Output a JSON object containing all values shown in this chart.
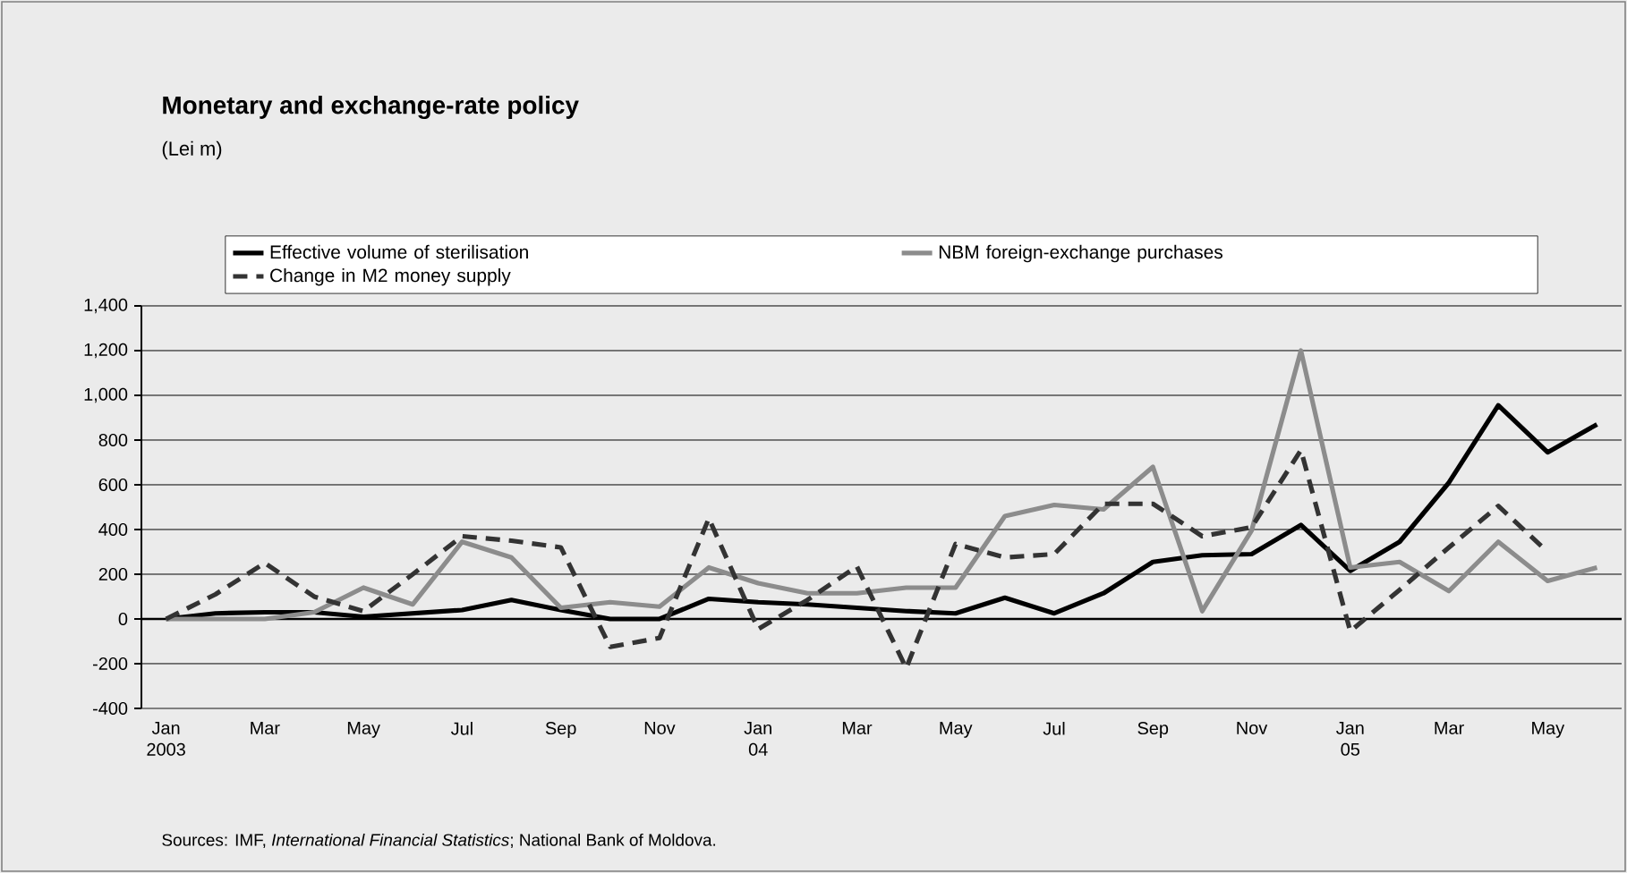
{
  "chart_data": {
    "type": "line",
    "title": "Monetary and exchange-rate policy",
    "subtitle": "(Lei m)",
    "categories": [
      "Jan 2003",
      null,
      "Mar",
      null,
      "May",
      null,
      "Jul",
      null,
      "Sep",
      null,
      "Nov",
      null,
      "Jan 04",
      null,
      "Mar",
      null,
      "May",
      null,
      "Jul",
      null,
      "Sep",
      null,
      "Nov",
      null,
      "Jan 05",
      null,
      "Mar",
      null,
      "May",
      null
    ],
    "series": [
      {
        "name": "Effective volume of sterilisation",
        "color": "#000000",
        "line_style": "solid",
        "values": [
          0,
          25,
          30,
          30,
          10,
          25,
          40,
          85,
          40,
          0,
          0,
          90,
          75,
          65,
          50,
          35,
          25,
          95,
          25,
          115,
          255,
          285,
          290,
          420,
          215,
          345,
          610,
          955,
          745,
          870
        ]
      },
      {
        "name": "NBM foreign-exchange purchases",
        "color": "#8c8c8c",
        "line_style": "solid",
        "values": [
          0,
          0,
          0,
          30,
          140,
          65,
          345,
          275,
          50,
          75,
          55,
          230,
          160,
          115,
          115,
          140,
          140,
          460,
          510,
          490,
          680,
          35,
          395,
          1200,
          230,
          255,
          125,
          345,
          170,
          230
        ]
      },
      {
        "name": "Change in M2 money supply",
        "color": "#333333",
        "line_style": "dashed",
        "values": [
          0,
          110,
          250,
          100,
          35,
          200,
          370,
          350,
          320,
          -125,
          -85,
          450,
          -45,
          85,
          235,
          -220,
          335,
          275,
          290,
          515,
          515,
          370,
          410,
          755,
          -55,
          130,
          320,
          505,
          300,
          null
        ]
      }
    ],
    "ylim": [
      -400,
      1400
    ],
    "yticks": [
      -400,
      -200,
      0,
      200,
      400,
      600,
      800,
      {
        "value": 1000,
        "label": "1,000"
      },
      {
        "value": 1200,
        "label": "1,200"
      },
      {
        "value": 1400,
        "label": "1,400"
      }
    ],
    "grid": "y",
    "legend": "top",
    "ref_lines": [
      {
        "axis": "y",
        "value": 0,
        "color": "#000000"
      }
    ],
    "annotations": [
      "Sources: IMF, *International Financial Statistics*; National Bank of Moldova."
    ]
  }
}
